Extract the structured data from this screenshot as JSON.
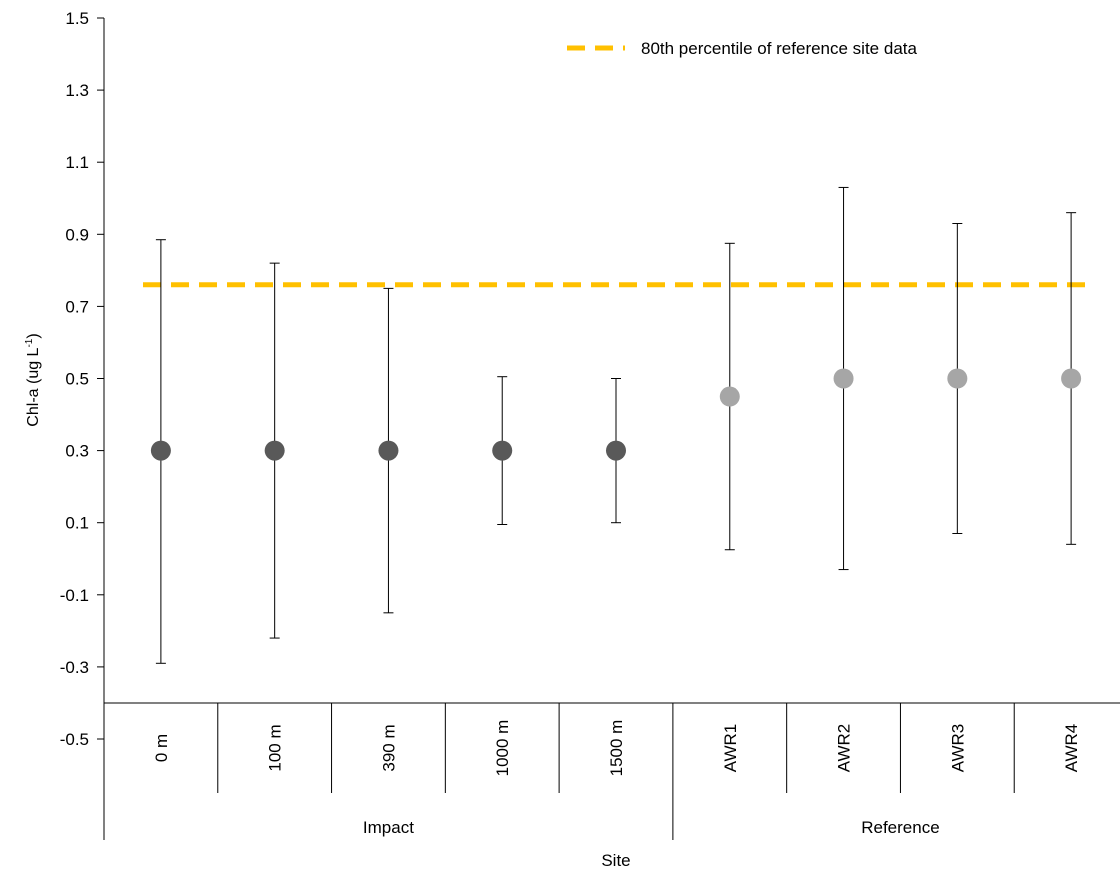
{
  "chart_data": {
    "type": "scatter",
    "title": "",
    "xlabel": "Site",
    "ylabel": {
      "main": "Chl-a (ug L",
      "sup": "-1",
      "end": ")"
    },
    "ylim": [
      -0.5,
      1.5
    ],
    "yticks": [
      "1.5",
      "1.3",
      "1.1",
      "0.9",
      "0.7",
      "0.5",
      "0.3",
      "0.1",
      "-0.1",
      "-0.3",
      "-0.5"
    ],
    "ytick_values": [
      1.5,
      1.3,
      1.1,
      0.9,
      0.7,
      0.5,
      0.3,
      0.1,
      -0.1,
      -0.3,
      -0.5
    ],
    "grid": false,
    "legend_position": "top-right",
    "categories": [
      "0 m",
      "100 m",
      "390 m",
      "1000 m",
      "1500 m",
      "AWR1",
      "AWR2",
      "AWR3",
      "AWR4"
    ],
    "groups": [
      {
        "name": "Impact",
        "count": 5,
        "color": "#595959"
      },
      {
        "name": "Reference",
        "count": 4,
        "color": "#a6a6a6"
      }
    ],
    "points": [
      {
        "site": "0 m",
        "value": 0.3,
        "low": -0.29,
        "high": 0.885
      },
      {
        "site": "100 m",
        "value": 0.3,
        "low": -0.22,
        "high": 0.82
      },
      {
        "site": "390 m",
        "value": 0.3,
        "low": -0.15,
        "high": 0.75
      },
      {
        "site": "1000 m",
        "value": 0.3,
        "low": 0.095,
        "high": 0.505
      },
      {
        "site": "1500 m",
        "value": 0.3,
        "low": 0.1,
        "high": 0.5
      },
      {
        "site": "AWR1",
        "value": 0.45,
        "low": 0.025,
        "high": 0.875
      },
      {
        "site": "AWR2",
        "value": 0.5,
        "low": -0.03,
        "high": 1.03
      },
      {
        "site": "AWR3",
        "value": 0.5,
        "low": 0.07,
        "high": 0.93
      },
      {
        "site": "AWR4",
        "value": 0.5,
        "low": 0.04,
        "high": 0.96
      }
    ],
    "reference_line": {
      "label": "80th percentile of reference site data",
      "value": 0.76,
      "color": "#ffc000"
    }
  }
}
